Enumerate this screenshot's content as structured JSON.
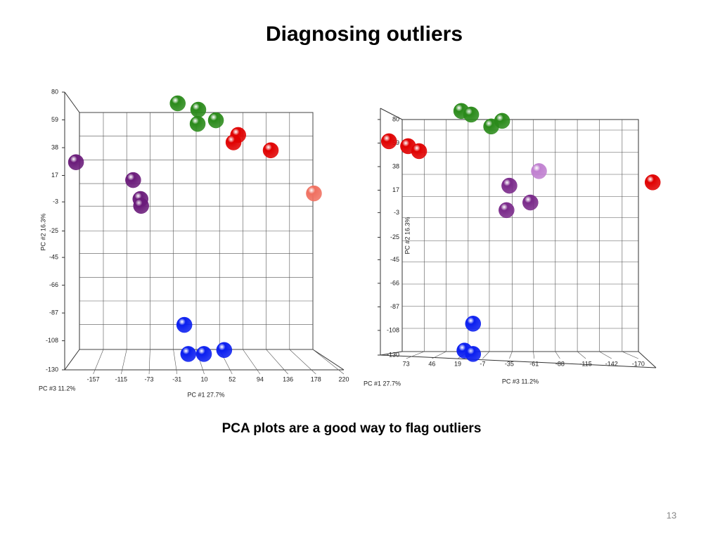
{
  "title": "Diagnosing outliers",
  "caption": "PCA plots are a good way to flag outliers",
  "page_number": "13",
  "chart_data": [
    {
      "type": "scatter",
      "x_label": "PC #1 27.7%",
      "y_label": "PC #2 16.3%",
      "z_label": "PC #3 11.2%",
      "xlim": [
        -200,
        220
      ],
      "ylim": [
        -130,
        80
      ],
      "xticks": [
        -157,
        -115,
        -73,
        -31,
        10,
        52,
        94,
        136,
        178,
        220
      ],
      "yticks": [
        80,
        59,
        38,
        17,
        -3,
        -25,
        -45,
        -66,
        -87,
        -108,
        -130
      ],
      "grid": true,
      "series": [
        {
          "color": "#2a8a1a",
          "x": [
            -30,
            1,
            0,
            27.5
          ],
          "values": [
            71.5,
            66.7,
            56,
            58.7
          ]
        },
        {
          "color": "#e00000",
          "x": [
            61,
            54,
            110
          ],
          "values": [
            47.6,
            42,
            36
          ]
        },
        {
          "color": "#f07060",
          "x": [
            175
          ],
          "values": [
            3.4
          ]
        },
        {
          "color": "#6a1b7a",
          "x": [
            -183,
            -97,
            -86,
            -85
          ],
          "values": [
            27,
            13.5,
            -0.8,
            -6
          ]
        },
        {
          "color": "#0a1ef0",
          "x": [
            -20,
            -14,
            9.5,
            40
          ],
          "values": [
            -96,
            -118,
            -118,
            -115
          ]
        }
      ]
    },
    {
      "type": "scatter",
      "x_label": "PC #3 11.2%",
      "y_label": "PC #2 16.3%",
      "z_label": "PC #1 27.7%",
      "xlim": [
        100,
        -190
      ],
      "ylim": [
        -130,
        90
      ],
      "xticks": [
        73,
        46,
        19,
        -7,
        -35,
        -61,
        -88,
        -115,
        -142,
        -170
      ],
      "yticks": [
        80,
        59,
        38,
        17,
        -3,
        -25,
        -45,
        -66,
        -87,
        -108,
        -130
      ],
      "grid": true,
      "series": [
        {
          "color": "#2a8a1a",
          "x": [
            15.3,
            5,
            -16,
            -27.4
          ],
          "values": [
            87.6,
            84.4,
            73.8,
            78.8
          ]
        },
        {
          "color": "#e00000",
          "x": [
            91,
            71,
            59.5,
            -185
          ],
          "values": [
            60.6,
            56.2,
            51.8,
            24
          ]
        },
        {
          "color": "#c080d0",
          "x": [
            -66
          ],
          "values": [
            34
          ]
        },
        {
          "color": "#7a2a8a",
          "x": [
            -35,
            -57,
            -32
          ],
          "values": [
            21,
            6,
            -0.8
          ]
        },
        {
          "color": "#0a1ef0",
          "x": [
            3,
            12,
            3
          ],
          "values": [
            -102,
            -126,
            -129
          ]
        }
      ]
    }
  ]
}
